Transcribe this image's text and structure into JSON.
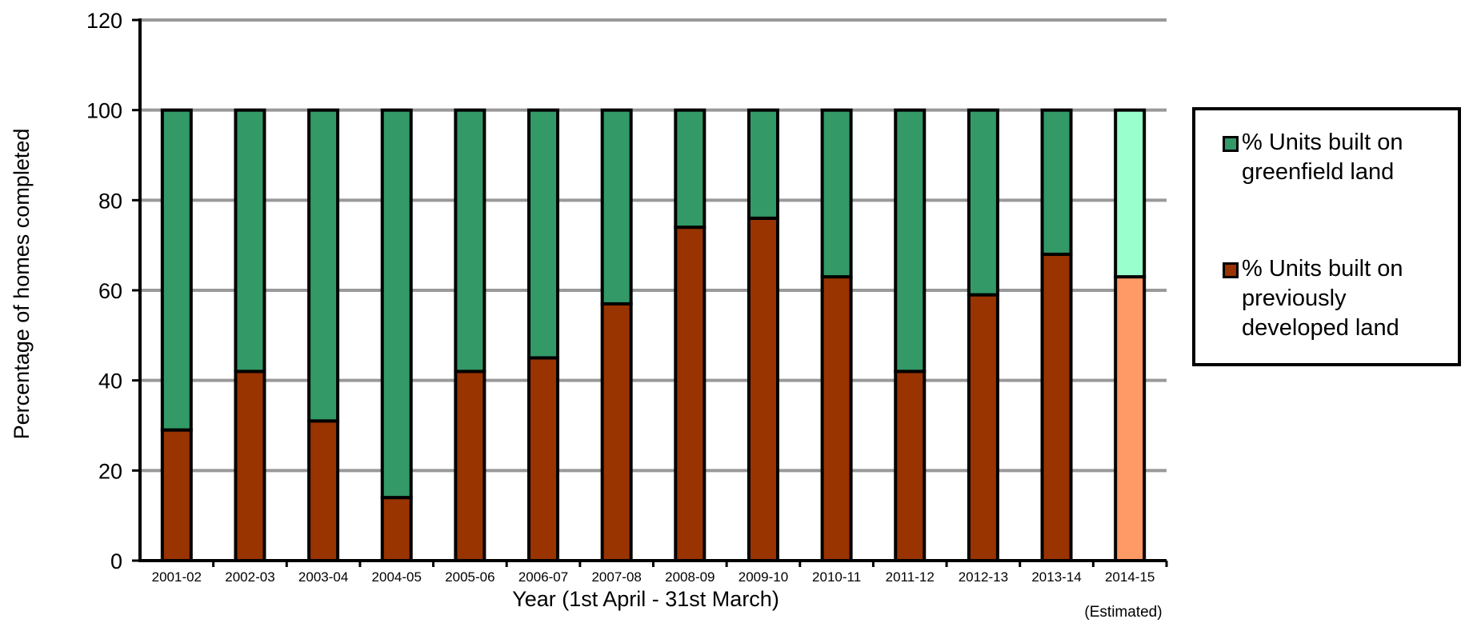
{
  "chart_data": {
    "type": "bar",
    "stacked": true,
    "title": "",
    "ylabel": "Percentage of homes completed",
    "xlabel": "Year (1st April - 31st March)",
    "x_note": "(Estimated)",
    "ylim": [
      0,
      120
    ],
    "yticks": [
      0,
      20,
      40,
      60,
      80,
      100,
      120
    ],
    "grid": true,
    "legend_position": "right",
    "categories": [
      "2001-02",
      "2002-03",
      "2003-04",
      "2004-05",
      "2005-06",
      "2006-07",
      "2007-08",
      "2008-09",
      "2009-10",
      "2010-11",
      "2011-12",
      "2012-13",
      "2013-14",
      "2014-15"
    ],
    "series": [
      {
        "name": "% Units built on previously developed land",
        "color": "#993300",
        "estimated_color": "#ff9966",
        "values": [
          29,
          42,
          31,
          14,
          42,
          45,
          57,
          74,
          76,
          63,
          42,
          59,
          68,
          63
        ]
      },
      {
        "name": "% Units built on greenfield land",
        "color": "#339966",
        "estimated_color": "#99ffcc",
        "values": [
          71,
          58,
          69,
          86,
          58,
          55,
          43,
          26,
          24,
          37,
          58,
          41,
          32,
          37
        ]
      }
    ],
    "estimated_category": "2014-15",
    "grid_color": "#999999"
  },
  "legend": {
    "items": [
      {
        "label": "% Units built on greenfield land",
        "color": "#339966"
      },
      {
        "label": "% Units built on previously developed land",
        "color": "#993300"
      }
    ]
  }
}
